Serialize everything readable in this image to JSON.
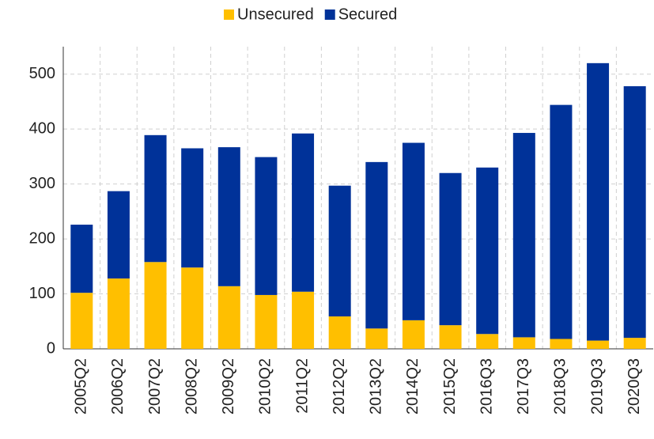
{
  "chart_data": {
    "type": "stacked_bar",
    "categories": [
      "2005Q2",
      "2006Q2",
      "2007Q2",
      "2008Q2",
      "2009Q2",
      "2010Q2",
      "2011Q2",
      "2012Q2",
      "2013Q2",
      "2014Q2",
      "2015Q2",
      "2016Q3",
      "2017Q3",
      "2018Q3",
      "2019Q3",
      "2020Q3"
    ],
    "series": [
      {
        "name": "Unsecured",
        "color": "#ffbf00",
        "values": [
          102,
          128,
          158,
          148,
          114,
          98,
          104,
          59,
          37,
          52,
          43,
          27,
          21,
          18,
          15,
          20
        ]
      },
      {
        "name": "Secured",
        "color": "#003299",
        "values": [
          124,
          159,
          231,
          217,
          253,
          251,
          288,
          238,
          303,
          323,
          277,
          303,
          372,
          426,
          505,
          458
        ]
      }
    ],
    "ylim": [
      0,
      550
    ],
    "yticks": [
      0,
      100,
      200,
      300,
      400,
      500
    ],
    "grid": true,
    "legend": "top"
  }
}
